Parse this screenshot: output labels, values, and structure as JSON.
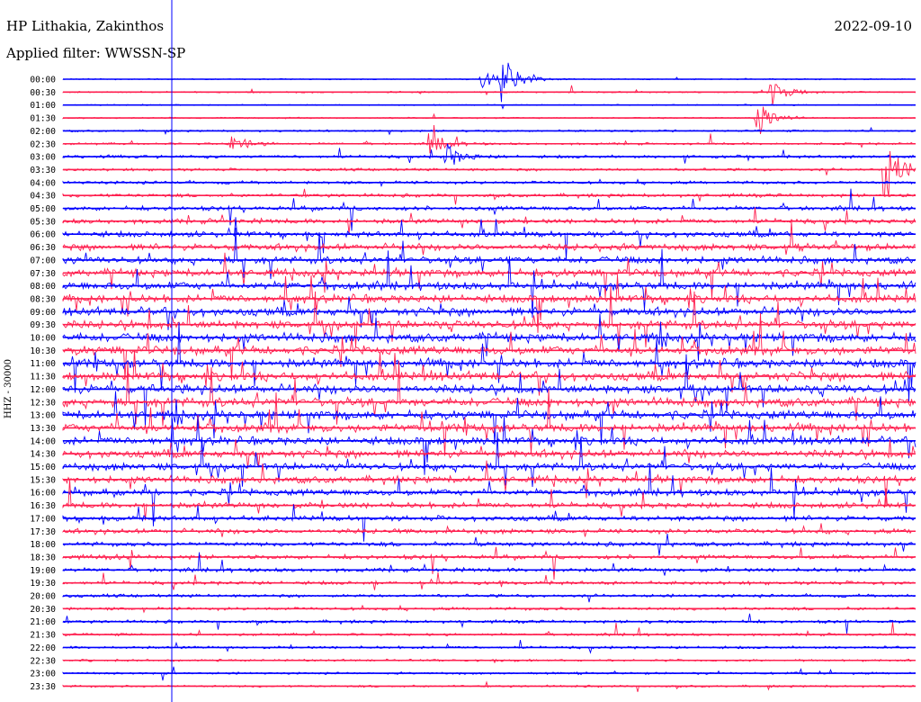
{
  "header": {
    "station": "HP Lithakia, Zakinthos",
    "date": "2022-09-10",
    "filter": "Applied filter: WWSSN-SP"
  },
  "chart_data": {
    "type": "line",
    "title": "HP Lithakia, Zakinthos",
    "ylabel": "HHZ - 30000",
    "trace_colors": [
      "#0000ff",
      "#ff1f4f"
    ],
    "time_labels": [
      "00:00",
      "00:30",
      "01:00",
      "01:30",
      "02:00",
      "02:30",
      "03:00",
      "03:30",
      "04:00",
      "04:30",
      "05:00",
      "05:30",
      "06:00",
      "06:30",
      "07:00",
      "07:30",
      "08:00",
      "08:30",
      "09:00",
      "09:30",
      "10:00",
      "10:30",
      "11:00",
      "11:30",
      "12:00",
      "12:30",
      "13:00",
      "13:30",
      "14:00",
      "14:30",
      "15:00",
      "15:30",
      "16:00",
      "16:30",
      "17:00",
      "17:30",
      "18:00",
      "18:30",
      "19:00",
      "19:30",
      "20:00",
      "20:30",
      "21:00",
      "21:30",
      "22:00",
      "22:30",
      "23:00",
      "23:30"
    ],
    "row_activity": [
      0.25,
      0.35,
      0.25,
      0.3,
      0.45,
      0.5,
      0.7,
      0.6,
      0.7,
      0.8,
      1.0,
      1.1,
      1.3,
      1.5,
      1.6,
      1.7,
      1.8,
      1.8,
      1.9,
      1.9,
      2.0,
      2.0,
      2.0,
      2.0,
      2.0,
      2.0,
      2.0,
      1.9,
      1.8,
      1.8,
      1.7,
      1.6,
      1.5,
      1.3,
      1.2,
      1.1,
      1.0,
      1.0,
      0.9,
      0.8,
      0.7,
      0.7,
      0.7,
      0.6,
      0.6,
      0.5,
      0.5,
      0.5
    ],
    "events": [
      {
        "row": 0,
        "minute": 15.5,
        "amp": 1.0
      },
      {
        "row": 0,
        "minute": 14.8,
        "amp": 0.35
      },
      {
        "row": 1,
        "minute": 25.0,
        "amp": 0.5
      },
      {
        "row": 3,
        "minute": 24.5,
        "amp": 0.7
      },
      {
        "row": 5,
        "minute": 13.0,
        "amp": 0.4
      },
      {
        "row": 5,
        "minute": 6.0,
        "amp": 0.4
      },
      {
        "row": 6,
        "minute": 13.5,
        "amp": 0.5
      },
      {
        "row": 7,
        "minute": 29.0,
        "amp": 1.2
      }
    ]
  }
}
